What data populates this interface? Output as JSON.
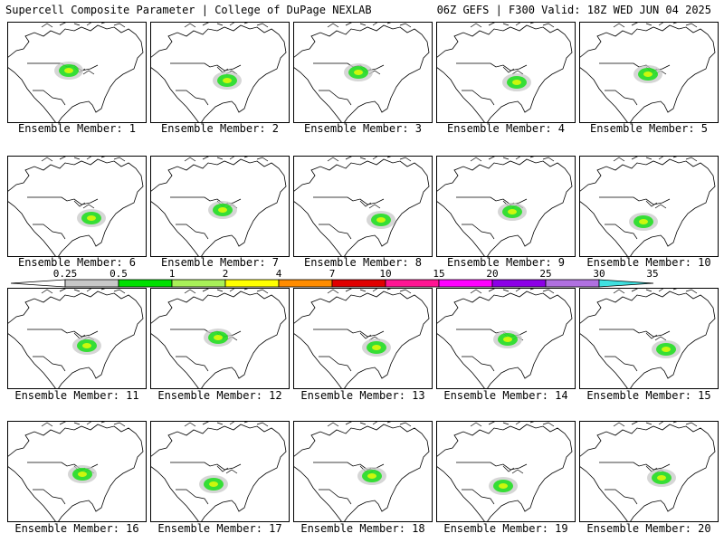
{
  "header": {
    "left": "Supercell Composite Parameter | College of DuPage NEXLAB",
    "right": "06Z GEFS | F300 Valid: 18Z WED JUN 04 2025"
  },
  "colorbar": {
    "labels": [
      "0.25",
      "0.5",
      "1",
      "2",
      "4",
      "7",
      "10",
      "15",
      "20",
      "25",
      "30",
      "35"
    ],
    "colors": [
      "#c8c8c8",
      "#00e000",
      "#a8f058",
      "#ffff00",
      "#ff8c00",
      "#e00000",
      "#ff1493",
      "#ff00ff",
      "#8c00e6",
      "#b070e0",
      "#40e0e0"
    ]
  },
  "members": [
    {
      "label": "Ensemble Member: 1"
    },
    {
      "label": "Ensemble Member: 2"
    },
    {
      "label": "Ensemble Member: 3"
    },
    {
      "label": "Ensemble Member: 4"
    },
    {
      "label": "Ensemble Member: 5"
    },
    {
      "label": "Ensemble Member: 6"
    },
    {
      "label": "Ensemble Member: 7"
    },
    {
      "label": "Ensemble Member: 8"
    },
    {
      "label": "Ensemble Member: 9"
    },
    {
      "label": "Ensemble Member: 10"
    },
    {
      "label": "Ensemble Member: 11"
    },
    {
      "label": "Ensemble Member: 12"
    },
    {
      "label": "Ensemble Member: 13"
    },
    {
      "label": "Ensemble Member: 14"
    },
    {
      "label": "Ensemble Member: 15"
    },
    {
      "label": "Ensemble Member: 16"
    },
    {
      "label": "Ensemble Member: 17"
    },
    {
      "label": "Ensemble Member: 18"
    },
    {
      "label": "Ensemble Member: 19"
    },
    {
      "label": "Ensemble Member: 20"
    }
  ]
}
